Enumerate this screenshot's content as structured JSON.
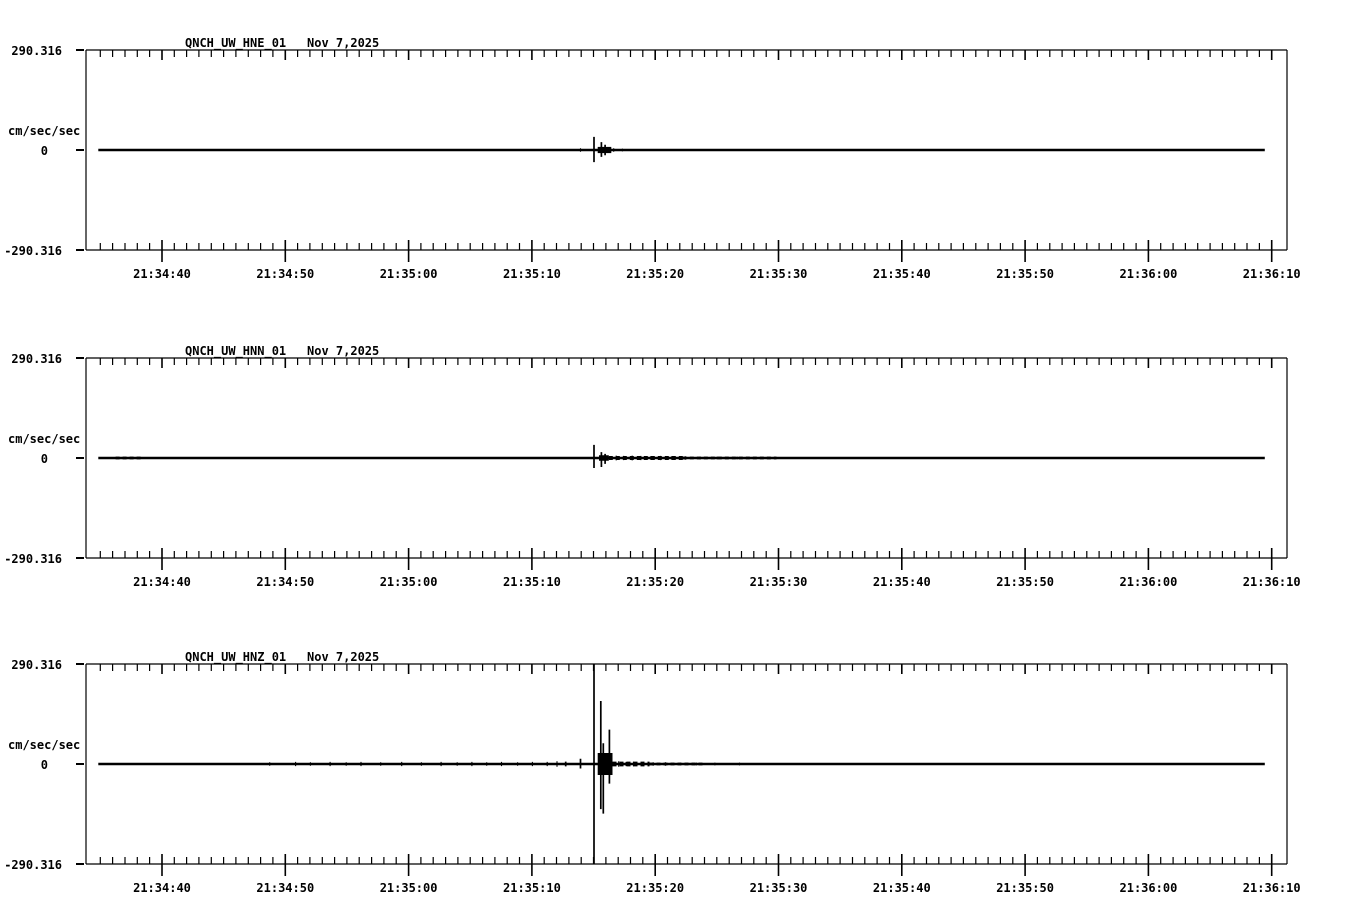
{
  "page": {
    "background_color": "#ffffff",
    "ink_color": "#000000",
    "description": "Three-channel strong-motion seismogram traces for station QNCH (UW network), event near 21:35:15"
  },
  "chart_data": [
    {
      "type": "line",
      "title": "QNCH_UW_HNE_01",
      "date": "Nov 7,2025",
      "ylabel": "cm/sec/sec",
      "ylim": [
        -290.316,
        290.316
      ],
      "y_tick_labels": {
        "max": "290.316",
        "zero": "0",
        "min": "-290.316"
      },
      "x_tick_labels": [
        "21:34:40",
        "21:34:50",
        "21:35:00",
        "21:35:10",
        "21:35:20",
        "21:35:30",
        "21:35:40",
        "21:35:50",
        "21:36:00",
        "21:36:10"
      ],
      "x_axis": {
        "window_seconds": 97.4,
        "first_major_tick_offset_s": 6.16,
        "major_interval_s": 10,
        "minor_interval_s": 1,
        "grid": false
      },
      "trace": {
        "baseline_value": 0,
        "start_s": 1.0,
        "end_s": 95.6,
        "spikes": [
          {
            "t": 41.2,
            "up": 38,
            "down": 35
          },
          {
            "t": 41.8,
            "up": 23,
            "down": 20
          },
          {
            "t": 42.1,
            "up": 15,
            "down": 15
          }
        ],
        "noise_bands": [
          {
            "t0": 41.5,
            "t1": 42.6,
            "amp": 9,
            "dashed": false
          }
        ],
        "noise_ticks": [
          {
            "t": 40.1,
            "amp": 5
          },
          {
            "t": 42.8,
            "amp": 5
          },
          {
            "t": 43.5,
            "amp": 4
          },
          {
            "t": 44.2,
            "amp": 3
          }
        ]
      }
    },
    {
      "type": "line",
      "title": "QNCH_UW_HNN_01",
      "date": "Nov 7,2025",
      "ylabel": "cm/sec/sec",
      "ylim": [
        -290.316,
        290.316
      ],
      "y_tick_labels": {
        "max": "290.316",
        "zero": "0",
        "min": "-290.316"
      },
      "x_tick_labels": [
        "21:34:40",
        "21:34:50",
        "21:35:00",
        "21:35:10",
        "21:35:20",
        "21:35:30",
        "21:35:40",
        "21:35:50",
        "21:36:00",
        "21:36:10"
      ],
      "x_axis": {
        "window_seconds": 97.4,
        "first_major_tick_offset_s": 6.16,
        "major_interval_s": 10,
        "minor_interval_s": 1,
        "grid": false
      },
      "trace": {
        "baseline_value": 0,
        "start_s": 1.0,
        "end_s": 95.6,
        "spikes": [
          {
            "t": 41.2,
            "up": 38,
            "down": 29
          },
          {
            "t": 41.8,
            "up": 17,
            "down": 26
          },
          {
            "t": 42.1,
            "up": 12,
            "down": 17
          }
        ],
        "noise_bands": [
          {
            "t0": 2.4,
            "t1": 4.5,
            "amp": 4,
            "dashed": true
          },
          {
            "t0": 41.6,
            "t1": 42.4,
            "amp": 8,
            "dashed": false
          },
          {
            "t0": 42.4,
            "t1": 48.4,
            "amp": 6,
            "dashed": true
          },
          {
            "t0": 48.4,
            "t1": 56.0,
            "amp": 4,
            "dashed": true
          }
        ],
        "noise_ticks": [
          {
            "t": 43.0,
            "amp": 7
          },
          {
            "t": 43.6,
            "amp": 6
          },
          {
            "t": 44.3,
            "amp": 7
          },
          {
            "t": 45.0,
            "amp": 6
          },
          {
            "t": 45.8,
            "amp": 5
          },
          {
            "t": 46.6,
            "amp": 6
          },
          {
            "t": 47.5,
            "amp": 5
          },
          {
            "t": 48.6,
            "amp": 5
          },
          {
            "t": 49.8,
            "amp": 4
          },
          {
            "t": 51.2,
            "amp": 4
          },
          {
            "t": 52.8,
            "amp": 4
          },
          {
            "t": 54.5,
            "amp": 3
          },
          {
            "t": 56.5,
            "amp": 3
          },
          {
            "t": 58.5,
            "amp": 3
          },
          {
            "t": 60.5,
            "amp": 3
          }
        ]
      }
    },
    {
      "type": "line",
      "title": "QNCH_UW_HNZ_01",
      "date": "Nov 7,2025",
      "ylabel": "cm/sec/sec",
      "ylim": [
        -290.316,
        290.316
      ],
      "y_tick_labels": {
        "max": "290.316",
        "zero": "0",
        "min": "-290.316"
      },
      "x_tick_labels": [
        "21:34:40",
        "21:34:50",
        "21:35:00",
        "21:35:10",
        "21:35:20",
        "21:35:30",
        "21:35:40",
        "21:35:50",
        "21:36:00",
        "21:36:10"
      ],
      "x_axis": {
        "window_seconds": 97.4,
        "first_major_tick_offset_s": 6.16,
        "major_interval_s": 10,
        "minor_interval_s": 1,
        "grid": false
      },
      "trace": {
        "baseline_value": 0,
        "start_s": 1.0,
        "end_s": 95.6,
        "spikes": [
          {
            "t": 38.9,
            "up": 7,
            "down": 7
          },
          {
            "t": 40.1,
            "up": 15,
            "down": 13
          },
          {
            "t": 41.2,
            "up": 291,
            "down": 291
          },
          {
            "t": 41.75,
            "up": 183,
            "down": 131
          },
          {
            "t": 41.95,
            "up": 60,
            "down": 144
          },
          {
            "t": 42.45,
            "up": 100,
            "down": 57
          }
        ],
        "noise_bands": [
          {
            "t0": 41.5,
            "t1": 42.7,
            "amp": 32,
            "dashed": false
          },
          {
            "t0": 42.7,
            "t1": 45.7,
            "amp": 7,
            "dashed": true
          },
          {
            "t0": 45.7,
            "t1": 50.0,
            "amp": 4,
            "dashed": true
          }
        ],
        "noise_ticks": [
          {
            "t": 14.9,
            "amp": 5
          },
          {
            "t": 17.0,
            "amp": 6
          },
          {
            "t": 18.2,
            "amp": 5
          },
          {
            "t": 19.8,
            "amp": 6
          },
          {
            "t": 21.1,
            "amp": 5
          },
          {
            "t": 22.3,
            "amp": 6
          },
          {
            "t": 23.9,
            "amp": 5
          },
          {
            "t": 25.6,
            "amp": 6
          },
          {
            "t": 27.2,
            "amp": 5
          },
          {
            "t": 28.8,
            "amp": 6
          },
          {
            "t": 30.1,
            "amp": 5
          },
          {
            "t": 31.3,
            "amp": 6
          },
          {
            "t": 32.5,
            "amp": 5
          },
          {
            "t": 33.7,
            "amp": 6
          },
          {
            "t": 35.0,
            "amp": 5
          },
          {
            "t": 36.2,
            "amp": 6
          },
          {
            "t": 37.4,
            "amp": 6
          },
          {
            "t": 38.2,
            "amp": 8
          },
          {
            "t": 43.2,
            "amp": 8
          },
          {
            "t": 43.8,
            "amp": 6
          },
          {
            "t": 44.4,
            "amp": 7
          },
          {
            "t": 45.2,
            "amp": 6
          },
          {
            "t": 46.0,
            "amp": 5
          },
          {
            "t": 47.0,
            "amp": 5
          },
          {
            "t": 48.2,
            "amp": 4
          },
          {
            "t": 49.5,
            "amp": 4
          },
          {
            "t": 51.0,
            "amp": 4
          },
          {
            "t": 53.0,
            "amp": 4
          },
          {
            "t": 55.0,
            "amp": 3
          }
        ]
      }
    }
  ]
}
